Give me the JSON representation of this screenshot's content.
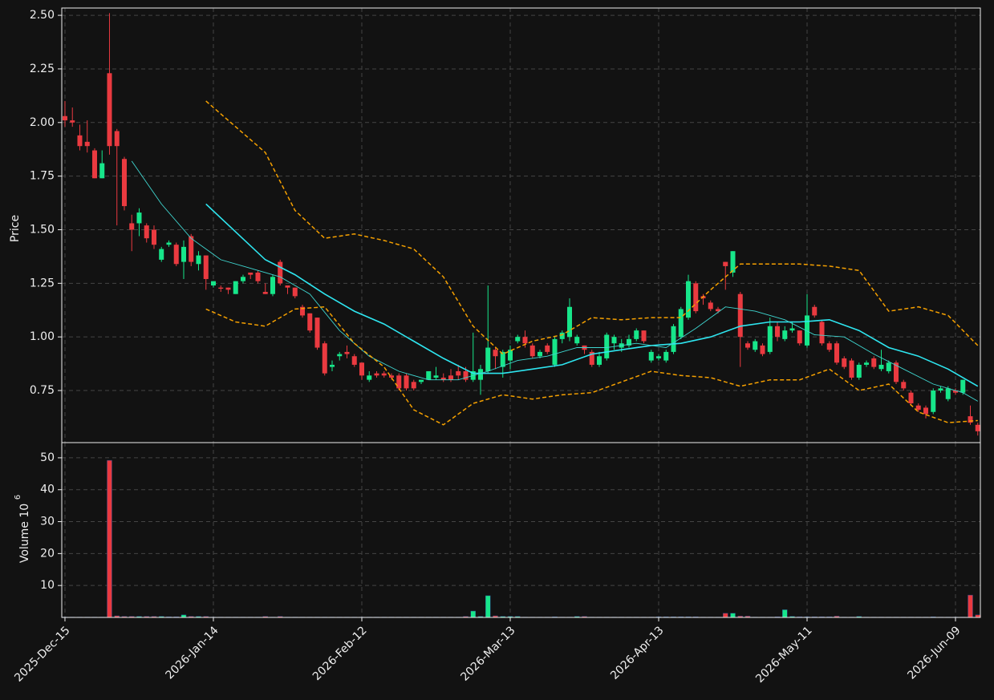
{
  "chart_data": {
    "type": "candlestick",
    "ylabel": "Price",
    "volume_label": "Volume  10",
    "volume_exponent": "6",
    "categories": [
      "2025-Dec-15",
      null,
      null,
      null,
      null,
      null,
      null,
      null,
      null,
      null,
      null,
      null,
      null,
      null,
      null,
      null,
      null,
      null,
      null,
      null,
      "2026-Jan-14",
      null,
      null,
      null,
      null,
      null,
      null,
      null,
      null,
      null,
      null,
      null,
      null,
      null,
      null,
      null,
      null,
      null,
      null,
      null,
      "2026-Feb-12",
      null,
      null,
      null,
      null,
      null,
      null,
      null,
      null,
      null,
      null,
      null,
      null,
      null,
      null,
      null,
      null,
      null,
      null,
      null,
      "2026-Mar-13",
      null,
      null,
      null,
      null,
      null,
      null,
      null,
      null,
      null,
      null,
      null,
      null,
      null,
      null,
      null,
      null,
      null,
      null,
      null,
      "2026-Apr-13",
      null,
      null,
      null,
      null,
      null,
      null,
      null,
      null,
      null,
      null,
      null,
      null,
      null,
      null,
      null,
      null,
      null,
      null,
      null,
      "2026-May-11",
      null,
      null,
      null,
      null,
      null,
      null,
      null,
      null,
      null,
      null,
      null,
      null,
      null,
      null,
      null,
      null,
      null,
      null,
      null,
      "2026-Jun-09",
      null,
      null,
      null
    ],
    "open": [
      2.03,
      2.01,
      1.94,
      1.91,
      1.87,
      1.74,
      2.23,
      1.96,
      1.83,
      1.53,
      1.53,
      1.52,
      1.5,
      1.36,
      1.43,
      1.43,
      1.35,
      1.47,
      1.34,
      1.38,
      1.24,
      1.23,
      1.23,
      1.2,
      1.26,
      1.3,
      1.3,
      1.21,
      1.2,
      1.35,
      1.24,
      1.23,
      1.14,
      1.11,
      1.09,
      0.97,
      0.86,
      0.91,
      0.93,
      0.91,
      0.88,
      0.8,
      0.83,
      0.83,
      0.82,
      0.82,
      0.82,
      0.79,
      0.79,
      0.8,
      0.81,
      0.81,
      0.82,
      0.84,
      0.84,
      0.8,
      0.8,
      0.84,
      0.94,
      0.86,
      0.89,
      0.98,
      1.0,
      0.96,
      0.91,
      0.96,
      0.87,
      0.99,
      1.0,
      0.97,
      0.96,
      0.93,
      0.87,
      0.9,
      0.97,
      0.95,
      0.96,
      0.99,
      1.03,
      0.89,
      0.9,
      0.89,
      0.93,
      1.0,
      1.09,
      1.25,
      1.19,
      1.16,
      1.13,
      1.35,
      1.3,
      1.2,
      0.97,
      0.94,
      0.96,
      0.93,
      1.05,
      0.99,
      1.03,
      1.03,
      0.96,
      1.14,
      1.07,
      0.97,
      0.97,
      0.9,
      0.89,
      0.81,
      0.87,
      0.9,
      0.85,
      0.84,
      0.88,
      0.79,
      0.74,
      0.68,
      0.67,
      0.65,
      0.75,
      0.71,
      0.75,
      0.74,
      0.63,
      0.59
    ],
    "high": [
      2.1,
      2.07,
      1.99,
      2.01,
      1.88,
      1.87,
      2.51,
      1.97,
      1.84,
      1.57,
      1.6,
      1.53,
      1.52,
      1.42,
      1.45,
      1.44,
      1.45,
      1.48,
      1.4,
      1.38,
      1.26,
      1.24,
      1.23,
      1.26,
      1.29,
      1.3,
      1.31,
      1.25,
      1.29,
      1.36,
      1.24,
      1.23,
      1.15,
      1.11,
      1.09,
      0.98,
      0.89,
      0.93,
      0.96,
      0.92,
      0.88,
      0.84,
      0.84,
      0.84,
      0.83,
      0.83,
      0.83,
      0.8,
      0.8,
      0.84,
      0.86,
      0.83,
      0.85,
      0.87,
      0.86,
      1.02,
      0.87,
      1.24,
      0.95,
      0.94,
      0.96,
      1.01,
      1.03,
      0.97,
      0.94,
      0.97,
      1.0,
      1.03,
      1.18,
      1.01,
      0.96,
      0.94,
      0.93,
      1.02,
      1.01,
      0.99,
      1.01,
      1.04,
      1.03,
      0.94,
      0.92,
      0.94,
      1.06,
      1.14,
      1.29,
      1.26,
      1.2,
      1.17,
      1.14,
      1.35,
      1.4,
      1.21,
      0.98,
      0.99,
      0.97,
      1.09,
      1.07,
      1.05,
      1.07,
      1.03,
      1.2,
      1.15,
      1.08,
      0.98,
      0.98,
      0.91,
      0.9,
      0.88,
      0.89,
      0.91,
      0.94,
      0.89,
      0.89,
      0.8,
      0.75,
      0.69,
      0.68,
      0.76,
      0.77,
      0.77,
      0.76,
      0.8,
      0.68,
      0.6
    ],
    "low": [
      1.98,
      1.98,
      1.87,
      1.86,
      1.74,
      1.74,
      1.85,
      1.52,
      1.59,
      1.4,
      1.47,
      1.44,
      1.41,
      1.35,
      1.42,
      1.33,
      1.27,
      1.33,
      1.31,
      1.22,
      1.23,
      1.21,
      1.2,
      1.2,
      1.25,
      1.27,
      1.25,
      1.2,
      1.19,
      1.24,
      1.2,
      1.18,
      1.09,
      1.02,
      0.94,
      0.82,
      0.84,
      0.89,
      0.9,
      0.86,
      0.8,
      0.79,
      0.81,
      0.81,
      0.8,
      0.75,
      0.75,
      0.75,
      0.78,
      0.8,
      0.8,
      0.79,
      0.79,
      0.8,
      0.79,
      0.79,
      0.73,
      0.83,
      0.85,
      0.81,
      0.85,
      0.97,
      0.95,
      0.9,
      0.9,
      0.92,
      0.86,
      0.97,
      0.98,
      0.96,
      0.92,
      0.86,
      0.86,
      0.89,
      0.94,
      0.93,
      0.95,
      0.98,
      0.97,
      0.88,
      0.89,
      0.88,
      0.92,
      0.99,
      1.08,
      1.11,
      1.15,
      1.12,
      1.11,
      1.22,
      1.28,
      0.86,
      0.94,
      0.93,
      0.91,
      0.92,
      0.98,
      0.98,
      1.02,
      0.96,
      0.95,
      1.09,
      0.96,
      0.93,
      0.87,
      0.85,
      0.8,
      0.8,
      0.86,
      0.85,
      0.84,
      0.83,
      0.78,
      0.75,
      0.68,
      0.65,
      0.62,
      0.64,
      0.74,
      0.7,
      0.73,
      0.73,
      0.59,
      0.54
    ],
    "close": [
      2.01,
      2.0,
      1.89,
      1.89,
      1.74,
      1.81,
      1.89,
      1.89,
      1.61,
      1.5,
      1.58,
      1.46,
      1.43,
      1.41,
      1.44,
      1.34,
      1.42,
      1.35,
      1.38,
      1.27,
      1.26,
      1.225,
      1.22,
      1.26,
      1.28,
      1.29,
      1.26,
      1.2,
      1.28,
      1.25,
      1.23,
      1.19,
      1.1,
      1.03,
      0.95,
      0.83,
      0.87,
      0.92,
      0.92,
      0.87,
      0.82,
      0.82,
      0.82,
      0.82,
      0.81,
      0.76,
      0.76,
      0.76,
      0.8,
      0.84,
      0.82,
      0.8,
      0.8,
      0.82,
      0.8,
      0.84,
      0.85,
      0.95,
      0.91,
      0.93,
      0.94,
      1.0,
      0.97,
      0.91,
      0.93,
      0.93,
      0.99,
      1.02,
      1.14,
      1.0,
      0.94,
      0.87,
      0.91,
      1.01,
      1.0,
      0.97,
      0.99,
      1.03,
      0.98,
      0.93,
      0.91,
      0.93,
      1.05,
      1.13,
      1.26,
      1.12,
      1.18,
      1.13,
      1.12,
      1.33,
      1.4,
      1.0,
      0.95,
      0.98,
      0.92,
      1.05,
      1.0,
      1.03,
      1.04,
      0.97,
      1.1,
      1.1,
      0.97,
      0.94,
      0.88,
      0.86,
      0.81,
      0.87,
      0.88,
      0.86,
      0.87,
      0.88,
      0.79,
      0.76,
      0.69,
      0.66,
      0.64,
      0.75,
      0.76,
      0.76,
      0.74,
      0.8,
      0.6,
      0.56
    ],
    "volume": [
      0.1,
      0.1,
      0.1,
      0.1,
      0.1,
      0.1,
      49.2,
      0.5,
      0.3,
      0.3,
      0.3,
      0.3,
      0.3,
      0.3,
      0.2,
      0.2,
      0.8,
      0.3,
      0.3,
      0.3,
      0.1,
      0.1,
      0.1,
      0.1,
      0.1,
      0.1,
      0.1,
      0.3,
      0.1,
      0.3,
      0.1,
      0.1,
      0.1,
      0.1,
      0.1,
      0.1,
      0.1,
      0.1,
      0.1,
      0.1,
      0.1,
      0.1,
      0.1,
      0.1,
      0.1,
      0.1,
      0.1,
      0.1,
      0.1,
      0.1,
      0.1,
      0.1,
      0.1,
      0.1,
      0.3,
      2.0,
      0.3,
      6.8,
      0.5,
      0.3,
      0.3,
      0.3,
      0.1,
      0.1,
      0.1,
      0.1,
      0.2,
      0.1,
      0.1,
      0.3,
      0.3,
      0.1,
      0.1,
      0.1,
      0.1,
      0.1,
      0.1,
      0.1,
      0.1,
      0.1,
      0.2,
      0.2,
      0.2,
      0.2,
      0.2,
      0.2,
      0.1,
      0.1,
      0.1,
      1.3,
      1.3,
      0.4,
      0.4,
      0.1,
      0.1,
      0.1,
      0.2,
      2.4,
      0.3,
      0.2,
      0.2,
      0.2,
      0.2,
      0.2,
      0.4,
      0.1,
      0.1,
      0.3,
      0.1,
      0.1,
      0.1,
      0.1,
      0.1,
      0.1,
      0.1,
      0.1,
      0.1,
      0.2,
      0.1,
      0.1,
      0.1,
      0.1,
      7.0,
      0.8
    ],
    "up_color": "#17e68a",
    "down_color": "#ea3a40",
    "lines": [
      {
        "color": "#2ee6f0",
        "width": 1.6,
        "dashed": false,
        "x": [
          19,
          23,
          27,
          31,
          35,
          39,
          43,
          47,
          51,
          55,
          59,
          63,
          67,
          71,
          75,
          79,
          83,
          87,
          91,
          95,
          99,
          103,
          107,
          111,
          115,
          119,
          123
        ],
        "values": [
          1.62,
          1.49,
          1.36,
          1.29,
          1.2,
          1.12,
          1.06,
          0.98,
          0.9,
          0.83,
          0.83,
          0.85,
          0.87,
          0.92,
          0.94,
          0.96,
          0.97,
          1.0,
          1.05,
          1.07,
          1.07,
          1.08,
          1.03,
          0.95,
          0.91,
          0.85,
          0.77
        ]
      },
      {
        "color": "#3fd6d0",
        "width": 0.9,
        "dashed": false,
        "x": [
          9,
          13,
          17,
          21,
          25,
          29,
          33,
          37,
          41,
          45,
          49,
          53,
          57,
          61,
          65,
          69,
          73,
          77,
          81,
          85,
          89,
          93,
          97,
          101,
          105,
          109,
          113,
          117,
          121,
          123
        ],
        "values": [
          1.82,
          1.62,
          1.46,
          1.36,
          1.32,
          1.28,
          1.2,
          1.03,
          0.91,
          0.84,
          0.8,
          0.8,
          0.84,
          0.89,
          0.91,
          0.95,
          0.95,
          0.97,
          0.95,
          1.04,
          1.14,
          1.12,
          1.08,
          1.01,
          1.0,
          0.92,
          0.85,
          0.78,
          0.74,
          0.7
        ]
      },
      {
        "color": "#f5a000",
        "width": 1.5,
        "dashed": true,
        "x": [
          19,
          23,
          27,
          31,
          35,
          39,
          43,
          47,
          51,
          55,
          59,
          63,
          67,
          71,
          75,
          79,
          83,
          87,
          91,
          95,
          99,
          103,
          107,
          111,
          115,
          119,
          123
        ],
        "values": [
          2.1,
          1.98,
          1.86,
          1.59,
          1.46,
          1.48,
          1.45,
          1.41,
          1.28,
          1.05,
          0.92,
          0.98,
          1.01,
          1.09,
          1.08,
          1.09,
          1.09,
          1.22,
          1.34,
          1.34,
          1.34,
          1.33,
          1.31,
          1.12,
          1.14,
          1.1,
          0.96
        ]
      },
      {
        "color": "#f5a000",
        "width": 1.5,
        "dashed": true,
        "x": [
          19,
          23,
          27,
          31,
          35,
          39,
          43,
          47,
          51,
          55,
          59,
          63,
          67,
          71,
          75,
          79,
          83,
          87,
          91,
          95,
          99,
          103,
          107,
          111,
          115,
          119,
          123
        ],
        "values": [
          1.13,
          1.07,
          1.05,
          1.13,
          1.14,
          0.97,
          0.86,
          0.66,
          0.59,
          0.69,
          0.73,
          0.71,
          0.73,
          0.74,
          0.79,
          0.84,
          0.82,
          0.81,
          0.77,
          0.8,
          0.8,
          0.85,
          0.75,
          0.78,
          0.65,
          0.6,
          0.61
        ]
      }
    ],
    "xlim": [
      -0.43,
      123.35
    ],
    "ylim": [
      0.507,
      2.534
    ],
    "yticks": [
      0.75,
      {
        "value": 1.0,
        "label": "1.00"
      },
      1.25,
      {
        "value": 1.5,
        "label": "1.50"
      },
      1.75,
      {
        "value": 2.0,
        "label": "2.00"
      },
      2.25,
      {
        "value": 2.5,
        "label": "2.50"
      }
    ],
    "volume_ylim": [
      0,
      54.75
    ],
    "volume_yticks": [
      10,
      20,
      30,
      40,
      50
    ],
    "grid": true
  }
}
